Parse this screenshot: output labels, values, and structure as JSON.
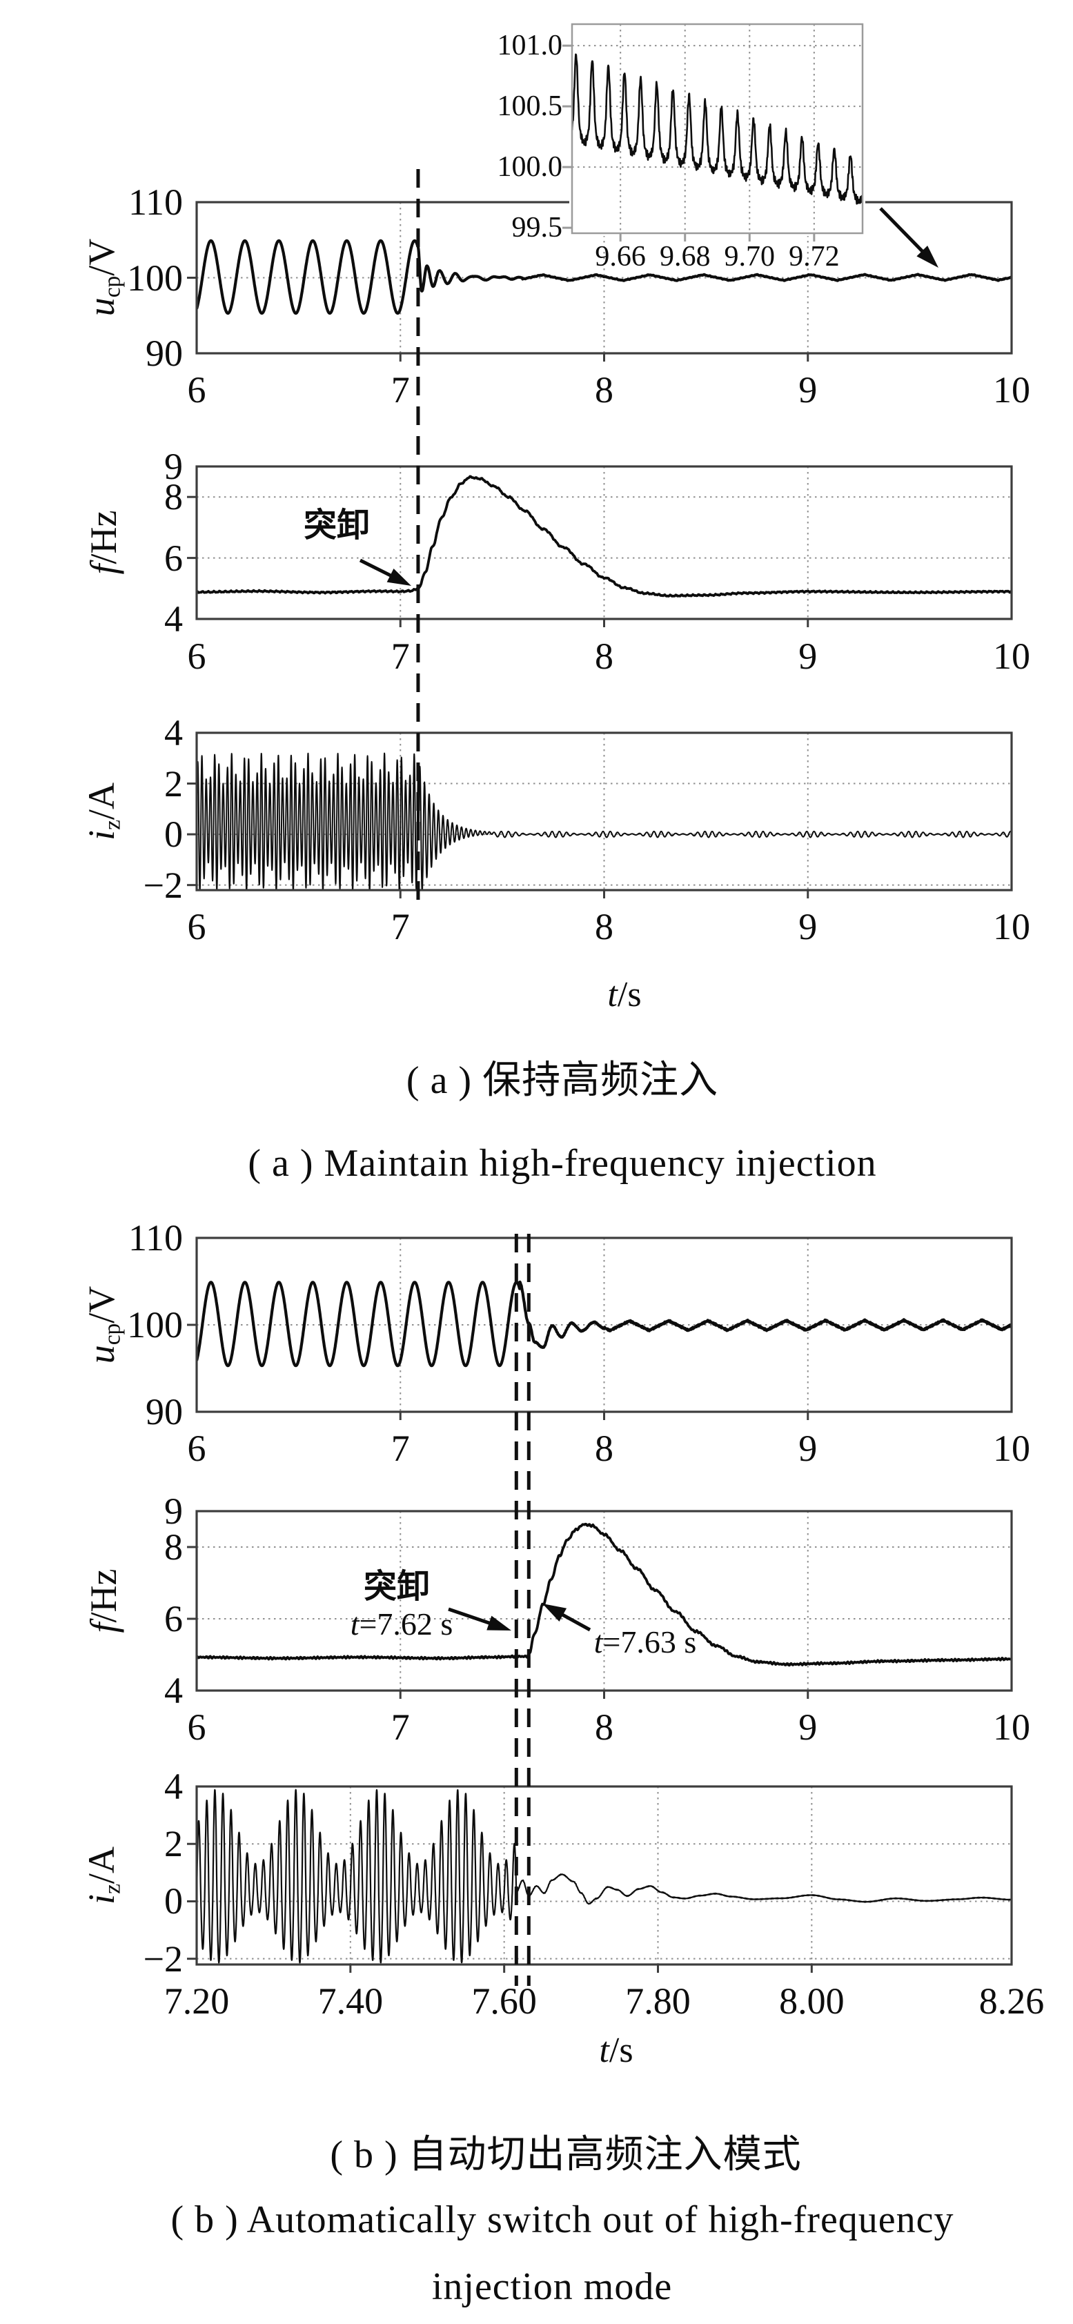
{
  "figure": {
    "background": "#ffffff",
    "line_color": "#0d0d0d",
    "frame_color": "#3d3d3d",
    "grid_color": "#8f8f8f",
    "captions": {
      "a_zh": "( a ) 保持高频注入",
      "a_en": "( a ) Maintain high-frequency injection",
      "b_zh": "( b ) 自动切出高频注入模式",
      "b_en_1": "( b ) Automatically switch out of high-frequency",
      "b_en_2": "injection mode"
    },
    "axis_title": {
      "var": "t",
      "unit": "/s"
    },
    "annotations": {
      "a_unload_label": "突卸",
      "b_unload_label": "突卸",
      "t762": {
        "var": "t",
        "rest": "=7.62 s"
      },
      "t763": {
        "var": "t",
        "rest": "=7.63 s"
      }
    }
  },
  "chart_data": {
    "type": "line",
    "xlabel": "t/s",
    "grid": "dotted",
    "events": {
      "a_dash_t": 7.087,
      "b_dash_t": [
        7.62,
        7.63
      ]
    },
    "panels": [
      {
        "id": "a1",
        "group": "a",
        "ylabel": {
          "var": "u",
          "sub": "cp",
          "unit": "/V"
        },
        "x": {
          "min": 6,
          "max": 10,
          "ticks": [
            6,
            7,
            8,
            9,
            10
          ],
          "tick_labels": [
            "6",
            "7",
            "8",
            "9",
            "10"
          ],
          "grid": [
            7,
            8,
            9
          ]
        },
        "y": {
          "min": 90,
          "max": 110,
          "ticks": [
            110,
            100,
            90
          ],
          "tick_labels": [
            "110",
            "100",
            "90"
          ],
          "grid": [
            100
          ]
        },
        "signal": [
          {
            "kind": "sine",
            "t0": 6.0,
            "t1": 7.085,
            "f": 6.0,
            "amp": 4.8,
            "mean": 100.1,
            "phase": -1.07,
            "n": 700
          },
          {
            "kind": "keys",
            "t0": 7.085,
            "t1": 7.6,
            "smooth": true,
            "noise": 0.03,
            "ripple": {
              "amp": 0.1,
              "f": 16,
              "shape": "sin"
            },
            "n": 400,
            "pts": [
              [
                7.085,
                104.2
              ],
              [
                7.105,
                98.3
              ],
              [
                7.13,
                101.5
              ],
              [
                7.16,
                98.9
              ],
              [
                7.19,
                100.9
              ],
              [
                7.23,
                99.3
              ],
              [
                7.27,
                100.5
              ],
              [
                7.31,
                99.6
              ],
              [
                7.36,
                100.3
              ],
              [
                7.41,
                99.75
              ],
              [
                7.48,
                100.15
              ],
              [
                7.54,
                99.9
              ],
              [
                7.6,
                100.0
              ]
            ]
          },
          {
            "kind": "keys",
            "t0": 7.6,
            "t1": 10.0,
            "smooth": false,
            "noise": 0.05,
            "ripple": {
              "amp": 0.38,
              "f": 3.8,
              "shape": "tri"
            },
            "n": 900,
            "pts": [
              [
                7.6,
                100.0
              ],
              [
                10,
                100.05
              ]
            ]
          }
        ]
      },
      {
        "id": "a2",
        "group": "a",
        "ylabel": {
          "var": "f",
          "unit": "/Hz"
        },
        "x": {
          "min": 6,
          "max": 10,
          "ticks": [
            6,
            7,
            8,
            9,
            10
          ],
          "tick_labels": [
            "6",
            "7",
            "8",
            "9",
            "10"
          ],
          "grid": [
            7,
            8,
            9
          ]
        },
        "y": {
          "min": 4,
          "max": 9,
          "ticks": [
            9,
            8,
            6,
            4
          ],
          "tick_labels": [
            "9",
            "8",
            "6",
            "4"
          ],
          "grid": [
            8,
            6
          ]
        },
        "signal": [
          {
            "kind": "keys",
            "t0": 6.0,
            "t1": 10.0,
            "smooth": true,
            "noise": 0.028,
            "n": 900,
            "pts": [
              [
                6,
                4.88
              ],
              [
                6.3,
                4.91
              ],
              [
                6.6,
                4.87
              ],
              [
                6.9,
                4.91
              ],
              [
                7.0,
                4.9
              ],
              [
                7.05,
                4.92
              ],
              [
                7.09,
                5.0
              ],
              [
                7.12,
                5.5
              ],
              [
                7.16,
                6.4
              ],
              [
                7.2,
                7.3
              ],
              [
                7.25,
                8.0
              ],
              [
                7.3,
                8.45
              ],
              [
                7.34,
                8.65
              ],
              [
                7.39,
                8.6
              ],
              [
                7.46,
                8.35
              ],
              [
                7.53,
                8.0
              ],
              [
                7.61,
                7.55
              ],
              [
                7.7,
                6.95
              ],
              [
                7.8,
                6.35
              ],
              [
                7.9,
                5.8
              ],
              [
                8.0,
                5.35
              ],
              [
                8.1,
                5.02
              ],
              [
                8.2,
                4.84
              ],
              [
                8.32,
                4.76
              ],
              [
                8.5,
                4.78
              ],
              [
                8.7,
                4.85
              ],
              [
                9.0,
                4.9
              ],
              [
                9.5,
                4.87
              ],
              [
                10,
                4.9
              ]
            ]
          }
        ]
      },
      {
        "id": "a3",
        "group": "a",
        "ylabel": {
          "var": "i",
          "sub": "z",
          "unit": "/A"
        },
        "x": {
          "min": 6,
          "max": 10,
          "ticks": [
            6,
            7,
            8,
            9,
            10
          ],
          "tick_labels": [
            "6",
            "7",
            "8",
            "9",
            "10"
          ],
          "grid": [
            7,
            8,
            9
          ]
        },
        "y": {
          "min": -2.2,
          "max": 4,
          "ticks": [
            4,
            2,
            0,
            -2
          ],
          "tick_labels": [
            "4",
            "2",
            "0",
            "−2"
          ],
          "grid": [
            2,
            0,
            -2
          ]
        },
        "signal": [
          {
            "kind": "am",
            "t0": 6.0,
            "t1": 7.09,
            "fc": 48,
            "fm": 13.3,
            "base": 2.2,
            "mod": 0.6,
            "mean": 0.4,
            "asym": 0.95,
            "n": 1600
          },
          {
            "kind": "decay",
            "t0": 7.09,
            "t1": 7.45,
            "fc": 44,
            "amp": 2.8,
            "tau": 0.085,
            "mean": 0.05,
            "n": 520
          },
          {
            "kind": "am",
            "t0": 7.45,
            "t1": 10.0,
            "fc": 28,
            "fm": 4.0,
            "base": 0.07,
            "mod": 0.05,
            "mean": 0.0,
            "asym": 1.0,
            "n": 1150
          }
        ]
      },
      {
        "id": "b1",
        "group": "b",
        "ylabel": {
          "var": "u",
          "sub": "cp",
          "unit": "/V"
        },
        "x": {
          "min": 6,
          "max": 10,
          "ticks": [
            6,
            7,
            8,
            9,
            10
          ],
          "tick_labels": [
            "6",
            "7",
            "8",
            "9",
            "10"
          ],
          "grid": [
            7,
            8,
            9
          ]
        },
        "y": {
          "min": 90,
          "max": 110,
          "ticks": [
            110,
            100,
            90
          ],
          "tick_labels": [
            "110",
            "100",
            "90"
          ],
          "grid": [
            100
          ]
        },
        "signal": [
          {
            "kind": "sine",
            "t0": 6.0,
            "t1": 7.585,
            "f": 6.0,
            "amp": 4.8,
            "mean": 100.1,
            "phase": -1.07,
            "n": 1000
          },
          {
            "kind": "keys",
            "t0": 7.585,
            "t1": 8.0,
            "smooth": true,
            "noise": 0.06,
            "n": 320,
            "pts": [
              [
                7.585,
                104.9
              ],
              [
                7.63,
                100.2
              ],
              [
                7.66,
                98.0
              ],
              [
                7.7,
                97.4
              ],
              [
                7.745,
                99.9
              ],
              [
                7.79,
                98.6
              ],
              [
                7.84,
                100.2
              ],
              [
                7.89,
                99.3
              ],
              [
                7.95,
                100.3
              ],
              [
                8.0,
                99.6
              ]
            ]
          },
          {
            "kind": "keys",
            "t0": 8.0,
            "t1": 10.0,
            "smooth": false,
            "noise": 0.1,
            "ripple": {
              "amp": 0.55,
              "f": 5.2,
              "shape": "tri"
            },
            "n": 900,
            "pts": [
              [
                8.0,
                99.9
              ],
              [
                10,
                100.0
              ]
            ]
          }
        ]
      },
      {
        "id": "b2",
        "group": "b",
        "ylabel": {
          "var": "f",
          "unit": "/Hz"
        },
        "x": {
          "min": 6,
          "max": 10,
          "ticks": [
            6,
            7,
            8,
            9,
            10
          ],
          "tick_labels": [
            "6",
            "7",
            "8",
            "9",
            "10"
          ],
          "grid": [
            7,
            8,
            9
          ]
        },
        "y": {
          "min": 4,
          "max": 9,
          "ticks": [
            9,
            8,
            6,
            4
          ],
          "tick_labels": [
            "9",
            "8",
            "6",
            "4"
          ],
          "grid": [
            8,
            6
          ]
        },
        "signal": [
          {
            "kind": "keys",
            "t0": 6.0,
            "t1": 10.0,
            "smooth": true,
            "noise": 0.028,
            "n": 950,
            "pts": [
              [
                6,
                4.93
              ],
              [
                6.4,
                4.9
              ],
              [
                6.8,
                4.93
              ],
              [
                7.2,
                4.9
              ],
              [
                7.45,
                4.93
              ],
              [
                7.58,
                4.95
              ],
              [
                7.62,
                4.95
              ],
              [
                7.63,
                5.0
              ],
              [
                7.66,
                5.6
              ],
              [
                7.7,
                6.4
              ],
              [
                7.74,
                7.1
              ],
              [
                7.78,
                7.75
              ],
              [
                7.82,
                8.2
              ],
              [
                7.86,
                8.48
              ],
              [
                7.9,
                8.63
              ],
              [
                7.94,
                8.6
              ],
              [
                8.0,
                8.35
              ],
              [
                8.08,
                7.9
              ],
              [
                8.16,
                7.4
              ],
              [
                8.25,
                6.8
              ],
              [
                8.35,
                6.2
              ],
              [
                8.45,
                5.65
              ],
              [
                8.55,
                5.25
              ],
              [
                8.65,
                4.95
              ],
              [
                8.75,
                4.8
              ],
              [
                8.9,
                4.73
              ],
              [
                9.1,
                4.76
              ],
              [
                9.4,
                4.82
              ],
              [
                9.7,
                4.85
              ],
              [
                10,
                4.88
              ]
            ]
          }
        ]
      },
      {
        "id": "b3",
        "group": "b",
        "ylabel": {
          "var": "i",
          "sub": "z",
          "unit": "/A"
        },
        "x": {
          "min": 7.2,
          "max": 8.26,
          "ticks": [
            7.2,
            7.4,
            7.6,
            7.8,
            8.0,
            8.26
          ],
          "tick_labels": [
            "7.20",
            "7.40",
            "7.60",
            "7.80",
            "8.00",
            "8.26"
          ],
          "grid": [
            7.4,
            7.6,
            7.8,
            8.0
          ]
        },
        "y": {
          "min": -2.2,
          "max": 4,
          "ticks": [
            4,
            2,
            0,
            -2
          ],
          "tick_labels": [
            "4",
            "2",
            "0",
            "−2"
          ],
          "grid": [
            2,
            0,
            -2
          ]
        },
        "signal": [
          {
            "kind": "am",
            "t0": 7.2,
            "t1": 7.616,
            "fc": 95,
            "fm": 9.5,
            "base": 2.3,
            "mod": 1.3,
            "mean": 0.3,
            "asym": 0.68,
            "n": 1900
          },
          {
            "kind": "keys",
            "t0": 7.616,
            "t1": 8.26,
            "smooth": true,
            "noise": 0.03,
            "n": 750,
            "pts": [
              [
                7.616,
                0.35
              ],
              [
                7.624,
                0.75
              ],
              [
                7.632,
                0.2
              ],
              [
                7.642,
                0.55
              ],
              [
                7.652,
                0.3
              ],
              [
                7.662,
                0.75
              ],
              [
                7.675,
                0.95
              ],
              [
                7.69,
                0.7
              ],
              [
                7.7,
                0.3
              ],
              [
                7.71,
                -0.08
              ],
              [
                7.72,
                0.1
              ],
              [
                7.735,
                0.5
              ],
              [
                7.747,
                0.4
              ],
              [
                7.76,
                0.18
              ],
              [
                7.775,
                0.42
              ],
              [
                7.79,
                0.52
              ],
              [
                7.805,
                0.3
              ],
              [
                7.82,
                0.12
              ],
              [
                7.835,
                0.08
              ],
              [
                7.855,
                0.18
              ],
              [
                7.875,
                0.25
              ],
              [
                7.895,
                0.15
              ],
              [
                7.925,
                0.06
              ],
              [
                7.96,
                0.1
              ],
              [
                8.0,
                0.22
              ],
              [
                8.035,
                0.08
              ],
              [
                8.07,
                0.0
              ],
              [
                8.11,
                0.12
              ],
              [
                8.15,
                0.03
              ],
              [
                8.19,
                0.08
              ],
              [
                8.22,
                0.13
              ],
              [
                8.26,
                0.05
              ]
            ]
          }
        ]
      }
    ],
    "inset": {
      "parent": "a1",
      "x": {
        "min": 9.645,
        "max": 9.735,
        "ticks": [
          9.66,
          9.68,
          9.7,
          9.72
        ],
        "tick_labels": [
          "9.66",
          "9.68",
          "9.70",
          "9.72"
        ],
        "grid": [
          9.66,
          9.68,
          9.7,
          9.72
        ]
      },
      "y": {
        "min": 99.455,
        "max": 101.177,
        "ticks": [
          101.0,
          100.5,
          100.0,
          99.5
        ],
        "tick_labels": [
          "101.0",
          "100.5",
          "100.0",
          "99.5"
        ],
        "grid": [
          101.0,
          100.5,
          100.0
        ]
      },
      "signal": [
        {
          "kind": "spiky",
          "t0": 9.645,
          "t1": 9.735,
          "base0": 100.32,
          "base1": 99.76,
          "amp0": 0.62,
          "amp1": 0.3,
          "period": 0.005,
          "power": 5,
          "dip": 0.1,
          "noise": 0.035,
          "n": 850
        }
      ]
    }
  }
}
